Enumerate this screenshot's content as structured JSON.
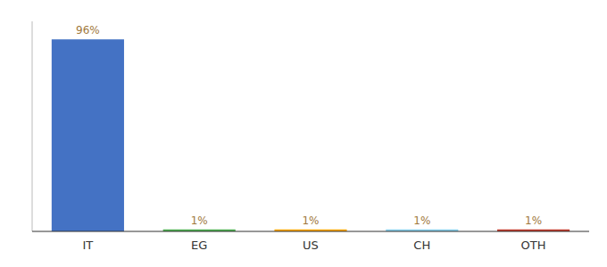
{
  "chart_data": {
    "type": "bar",
    "categories": [
      "IT",
      "EG",
      "US",
      "CH",
      "OTH"
    ],
    "values": [
      96,
      1,
      1,
      1,
      1
    ],
    "value_labels": [
      "96%",
      "1%",
      "1%",
      "1%",
      "1%"
    ],
    "colors": [
      "#4472c4",
      "#4caf50",
      "#ffa500",
      "#87ceeb",
      "#c0392b"
    ],
    "ylim": [
      0,
      105
    ],
    "grid": false,
    "data_labels": true,
    "tick_labels": "x"
  }
}
